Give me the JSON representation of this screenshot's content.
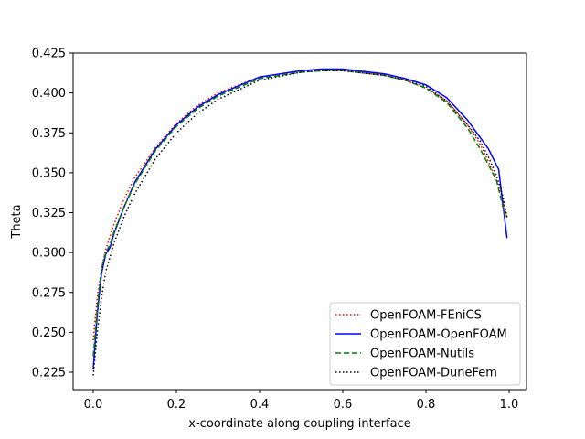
{
  "chart_data": {
    "type": "line",
    "title": "",
    "xlabel": "x-coordinate along coupling interface",
    "ylabel": "Theta",
    "xlim": [
      -0.05,
      1.04
    ],
    "ylim": [
      0.213,
      0.425
    ],
    "xticks": [
      0.0,
      0.2,
      0.4,
      0.6,
      0.8,
      1.0
    ],
    "xtick_labels": [
      "0.0",
      "0.2",
      "0.4",
      "0.6",
      "0.8",
      "1.0"
    ],
    "yticks": [
      0.225,
      0.25,
      0.275,
      0.3,
      0.325,
      0.35,
      0.375,
      0.4,
      0.425
    ],
    "ytick_labels": [
      "0.225",
      "0.250",
      "0.275",
      "0.300",
      "0.325",
      "0.350",
      "0.375",
      "0.400",
      "0.425"
    ],
    "grid": false,
    "legend_position": "lower right",
    "series": [
      {
        "name": "OpenFOAM-FEniCS",
        "color": "#ff0000",
        "style": "dotted",
        "x": [
          0.0,
          0.005,
          0.01,
          0.02,
          0.03,
          0.05,
          0.075,
          0.1,
          0.15,
          0.2,
          0.25,
          0.3,
          0.4,
          0.5,
          0.55,
          0.6,
          0.7,
          0.75,
          0.8,
          0.85,
          0.9,
          0.93,
          0.95,
          0.97,
          0.985,
          0.995
        ],
        "y": [
          0.245,
          0.26,
          0.272,
          0.29,
          0.302,
          0.318,
          0.334,
          0.347,
          0.366,
          0.381,
          0.392,
          0.4,
          0.41,
          0.414,
          0.415,
          0.414,
          0.411,
          0.408,
          0.403,
          0.395,
          0.38,
          0.368,
          0.357,
          0.345,
          0.333,
          0.322
        ]
      },
      {
        "name": "OpenFOAM-OpenFOAM",
        "color": "#0000ff",
        "style": "solid",
        "x": [
          0.0,
          0.005,
          0.01,
          0.02,
          0.03,
          0.04,
          0.05,
          0.075,
          0.1,
          0.15,
          0.2,
          0.25,
          0.3,
          0.4,
          0.5,
          0.55,
          0.6,
          0.7,
          0.75,
          0.8,
          0.85,
          0.9,
          0.95,
          0.975,
          0.985,
          0.995
        ],
        "y": [
          0.227,
          0.245,
          0.262,
          0.287,
          0.299,
          0.303,
          0.312,
          0.329,
          0.344,
          0.365,
          0.38,
          0.391,
          0.399,
          0.41,
          0.414,
          0.415,
          0.415,
          0.412,
          0.409,
          0.405,
          0.397,
          0.383,
          0.365,
          0.352,
          0.33,
          0.309
        ]
      },
      {
        "name": "OpenFOAM-Nutils",
        "color": "#008000",
        "style": "dashed",
        "x": [
          0.0,
          0.005,
          0.01,
          0.02,
          0.03,
          0.04,
          0.05,
          0.075,
          0.1,
          0.15,
          0.2,
          0.25,
          0.3,
          0.4,
          0.5,
          0.55,
          0.6,
          0.7,
          0.75,
          0.8,
          0.85,
          0.9,
          0.93,
          0.95,
          0.97,
          0.99
        ],
        "y": [
          0.235,
          0.25,
          0.266,
          0.29,
          0.3,
          0.305,
          0.313,
          0.329,
          0.343,
          0.364,
          0.379,
          0.39,
          0.398,
          0.409,
          0.413,
          0.414,
          0.414,
          0.411,
          0.408,
          0.403,
          0.394,
          0.378,
          0.365,
          0.355,
          0.345,
          0.323
        ]
      },
      {
        "name": "OpenFOAM-DuneFem",
        "color": "#000000",
        "style": "dotted",
        "x": [
          0.0,
          0.005,
          0.01,
          0.02,
          0.03,
          0.05,
          0.075,
          0.1,
          0.15,
          0.2,
          0.25,
          0.3,
          0.4,
          0.5,
          0.55,
          0.6,
          0.7,
          0.75,
          0.8,
          0.85,
          0.9,
          0.93,
          0.95,
          0.97,
          0.985,
          0.995
        ],
        "y": [
          0.223,
          0.237,
          0.25,
          0.272,
          0.288,
          0.306,
          0.323,
          0.337,
          0.359,
          0.375,
          0.387,
          0.396,
          0.408,
          0.413,
          0.414,
          0.414,
          0.411,
          0.408,
          0.404,
          0.395,
          0.38,
          0.37,
          0.36,
          0.348,
          0.335,
          0.322
        ]
      }
    ]
  }
}
